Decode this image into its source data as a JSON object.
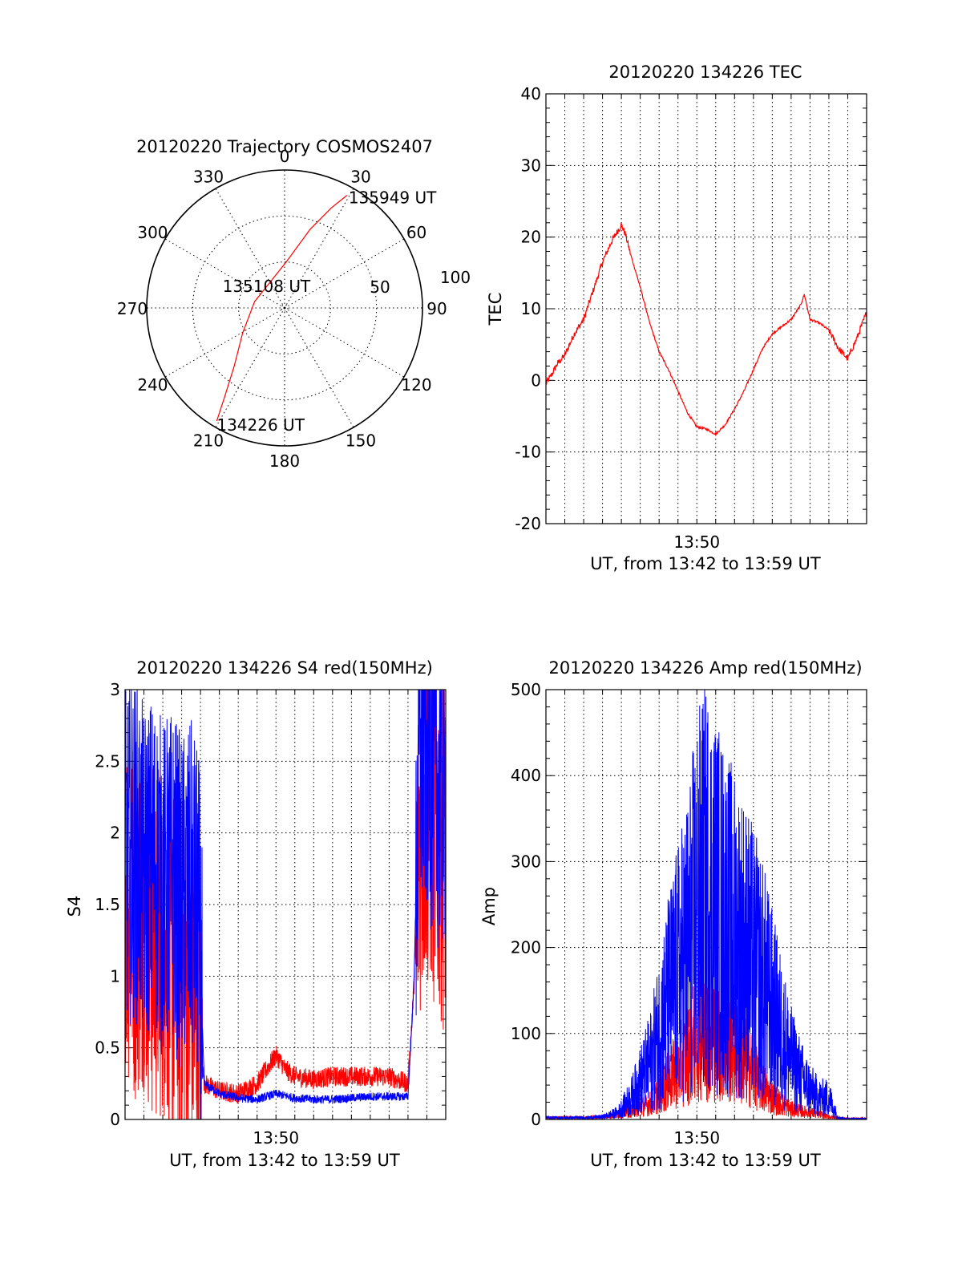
{
  "chart_data": [
    {
      "type": "polar",
      "title": "20120220 Trajectory COSMOS2407",
      "angle_labels": [
        "0",
        "30",
        "60",
        "90",
        "120",
        "150",
        "180",
        "210",
        "240",
        "270",
        "300",
        "330"
      ],
      "radial_labels": [
        "50",
        "100"
      ],
      "series": [
        {
          "color": "#ff0000",
          "points": [
            {
              "az": 211,
              "el": 4
            },
            {
              "az": 214,
              "el": 20
            },
            {
              "az": 221,
              "el": 40
            },
            {
              "az": 239,
              "el": 58
            },
            {
              "az": 282,
              "el": 70
            },
            {
              "az": 2,
              "el": 60
            },
            {
              "az": 18,
              "el": 36
            },
            {
              "az": 25,
              "el": 18
            },
            {
              "az": 29,
              "el": 6
            }
          ]
        }
      ],
      "annotations": [
        {
          "text": "135949 UT",
          "az": 29,
          "el": 6
        },
        {
          "text": "135108 UT",
          "az": 282,
          "el": 70
        },
        {
          "text": "134226 UT",
          "az": 211,
          "el": 4
        }
      ]
    },
    {
      "type": "line",
      "title": "20120220 134226 TEC",
      "ylabel": "TEC",
      "xlabel": "UT, from 13:42 to 13:59 UT",
      "x_tick_labels": [
        "13:50"
      ],
      "y_ticks": [
        "-20",
        "-10",
        "0",
        "10",
        "20",
        "30",
        "40"
      ],
      "ylim": [
        -20,
        40
      ],
      "xlim_minutes": [
        0,
        17
      ],
      "series": [
        {
          "color": "#ff0000",
          "x_minutes": [
            0.0,
            0.3,
            0.6,
            1.0,
            1.5,
            2.0,
            2.5,
            3.0,
            3.5,
            4.0,
            4.2,
            4.5,
            5.0,
            5.5,
            6.0,
            6.5,
            7.0,
            7.5,
            8.0,
            8.5,
            9.0,
            9.5,
            10.0,
            10.5,
            11.0,
            11.5,
            12.0,
            12.5,
            13.0,
            13.5,
            13.7,
            14.0,
            14.5,
            15.0,
            15.5,
            16.0,
            16.5,
            17.0
          ],
          "y": [
            -0.5,
            0.8,
            2.3,
            3.5,
            6.5,
            8.5,
            12.5,
            16.5,
            19.5,
            21.7,
            20.5,
            17.5,
            13.0,
            8.0,
            4.0,
            1.5,
            -1.5,
            -4.5,
            -6.5,
            -6.8,
            -7.5,
            -6.2,
            -4.0,
            -1.5,
            1.5,
            4.5,
            6.5,
            7.5,
            8.5,
            10.5,
            12.0,
            8.5,
            8.0,
            7.0,
            4.5,
            3.0,
            6.0,
            9.5
          ]
        }
      ]
    },
    {
      "type": "line",
      "title": "20120220 134226 S4 red(150MHz)",
      "ylabel": "S4",
      "xlabel": "UT, from 13:42 to 13:59 UT",
      "x_tick_labels": [
        "13:50"
      ],
      "y_ticks": [
        "0",
        "0.5",
        "1",
        "1.5",
        "2",
        "2.5",
        "3"
      ],
      "ylim": [
        0,
        3
      ],
      "xlim_minutes": [
        0,
        17
      ],
      "series": [
        {
          "color": "#ff0000",
          "x_minutes": [
            0.0,
            0.5,
            1.0,
            1.5,
            2.0,
            2.5,
            3.0,
            3.5,
            3.9,
            4.2,
            5.0,
            6.0,
            7.0,
            7.5,
            8.0,
            8.5,
            9.0,
            10.0,
            11.0,
            12.0,
            13.0,
            14.0,
            15.0,
            15.3,
            15.6,
            16.0,
            16.5,
            17.0
          ],
          "y": [
            1.6,
            1.4,
            1.5,
            1.2,
            1.3,
            1.1,
            1.0,
            0.9,
            0.7,
            0.25,
            0.2,
            0.18,
            0.25,
            0.35,
            0.45,
            0.35,
            0.3,
            0.28,
            0.3,
            0.3,
            0.3,
            0.3,
            0.25,
            0.9,
            2.0,
            2.2,
            2.0,
            1.9
          ]
        },
        {
          "color": "#0000ff",
          "x_minutes": [
            0.0,
            0.5,
            1.0,
            1.5,
            2.0,
            2.5,
            3.0,
            3.5,
            3.9,
            4.2,
            5.0,
            6.0,
            7.0,
            8.0,
            9.0,
            10.0,
            11.0,
            12.0,
            13.0,
            14.0,
            15.0,
            15.3,
            15.6,
            16.0,
            16.5,
            17.0
          ],
          "y": [
            1.8,
            1.9,
            1.7,
            1.8,
            1.6,
            1.7,
            1.5,
            1.6,
            1.4,
            0.25,
            0.18,
            0.15,
            0.14,
            0.18,
            0.15,
            0.14,
            0.14,
            0.15,
            0.16,
            0.16,
            0.16,
            0.9,
            2.5,
            2.6,
            2.4,
            2.3
          ]
        }
      ]
    },
    {
      "type": "line",
      "title": "20120220 134226 Amp red(150MHz)",
      "ylabel": "Amp",
      "xlabel": "UT, from 13:42 to 13:59 UT",
      "x_tick_labels": [
        "13:50"
      ],
      "y_ticks": [
        "0",
        "100",
        "200",
        "300",
        "400",
        "500"
      ],
      "ylim": [
        0,
        500
      ],
      "xlim_minutes": [
        0,
        17
      ],
      "series": [
        {
          "color": "#ff0000",
          "x_minutes": [
            0.0,
            1.0,
            2.0,
            3.0,
            3.8,
            4.5,
            5.0,
            5.5,
            6.0,
            6.5,
            7.0,
            7.5,
            8.0,
            8.5,
            9.0,
            9.5,
            10.0,
            10.5,
            11.0,
            11.5,
            12.0,
            12.5,
            13.0,
            13.5,
            14.0,
            14.5,
            15.0,
            15.5,
            16.0,
            17.0
          ],
          "y": [
            2,
            2,
            2,
            3,
            5,
            10,
            14,
            18,
            30,
            45,
            60,
            75,
            95,
            100,
            95,
            85,
            80,
            70,
            55,
            38,
            25,
            18,
            12,
            10,
            8,
            6,
            3,
            2,
            1,
            1
          ]
        },
        {
          "color": "#0000ff",
          "x_minutes": [
            0.0,
            1.0,
            2.0,
            3.0,
            3.8,
            4.5,
            5.0,
            5.5,
            6.0,
            6.5,
            7.0,
            7.5,
            8.0,
            8.5,
            9.0,
            9.5,
            10.0,
            10.5,
            11.0,
            11.5,
            12.0,
            12.5,
            13.0,
            13.5,
            14.0,
            14.5,
            15.0,
            15.5,
            16.0,
            17.0
          ],
          "y": [
            2,
            2,
            2,
            3,
            8,
            25,
            45,
            65,
            100,
            140,
            170,
            200,
            250,
            270,
            250,
            230,
            215,
            200,
            180,
            160,
            130,
            100,
            70,
            50,
            35,
            25,
            25,
            2,
            1,
            1
          ]
        }
      ]
    }
  ]
}
